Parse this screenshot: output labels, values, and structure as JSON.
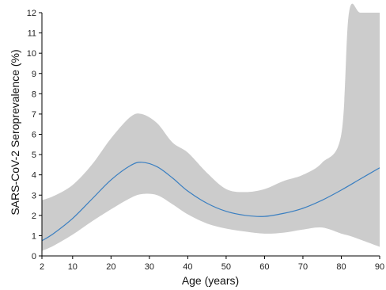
{
  "chart_data": {
    "type": "line",
    "xlabel": "Age (years)",
    "ylabel": "SARS-CoV-2 Seroprevalence (%)",
    "xlim": [
      2,
      90
    ],
    "ylim": [
      0,
      12
    ],
    "x_ticks": [
      2,
      10,
      20,
      30,
      40,
      50,
      60,
      70,
      80,
      90
    ],
    "y_ticks": [
      0,
      1,
      2,
      3,
      4,
      5,
      6,
      7,
      8,
      9,
      10,
      11,
      12
    ],
    "grid": false,
    "legend": "none",
    "series": [
      {
        "role": "estimate",
        "color": "#3a7fc1",
        "x": [
          2,
          5,
          10,
          15,
          20,
          25,
          28,
          32,
          36,
          40,
          45,
          50,
          55,
          60,
          65,
          70,
          75,
          80,
          85,
          90
        ],
        "y": [
          0.75,
          1.1,
          1.85,
          2.8,
          3.75,
          4.45,
          4.62,
          4.4,
          3.85,
          3.2,
          2.6,
          2.2,
          2.0,
          1.95,
          2.1,
          2.35,
          2.75,
          3.25,
          3.8,
          4.35
        ]
      }
    ],
    "confidence_band": {
      "color": "#cccccc",
      "x": [
        2,
        5,
        10,
        15,
        20,
        25,
        28,
        32,
        36,
        40,
        45,
        50,
        55,
        60,
        65,
        70,
        75,
        80,
        82,
        85,
        90
      ],
      "lower": [
        0.25,
        0.5,
        1.05,
        1.7,
        2.3,
        2.85,
        3.05,
        3.0,
        2.55,
        2.05,
        1.6,
        1.35,
        1.2,
        1.1,
        1.15,
        1.3,
        1.4,
        1.1,
        1.0,
        0.8,
        0.45
      ],
      "upper": [
        2.75,
        2.95,
        3.5,
        4.5,
        5.8,
        6.85,
        7.0,
        6.55,
        5.6,
        5.1,
        4.1,
        3.3,
        3.15,
        3.3,
        3.7,
        4.0,
        4.6,
        6.0,
        12,
        12,
        12
      ]
    }
  }
}
